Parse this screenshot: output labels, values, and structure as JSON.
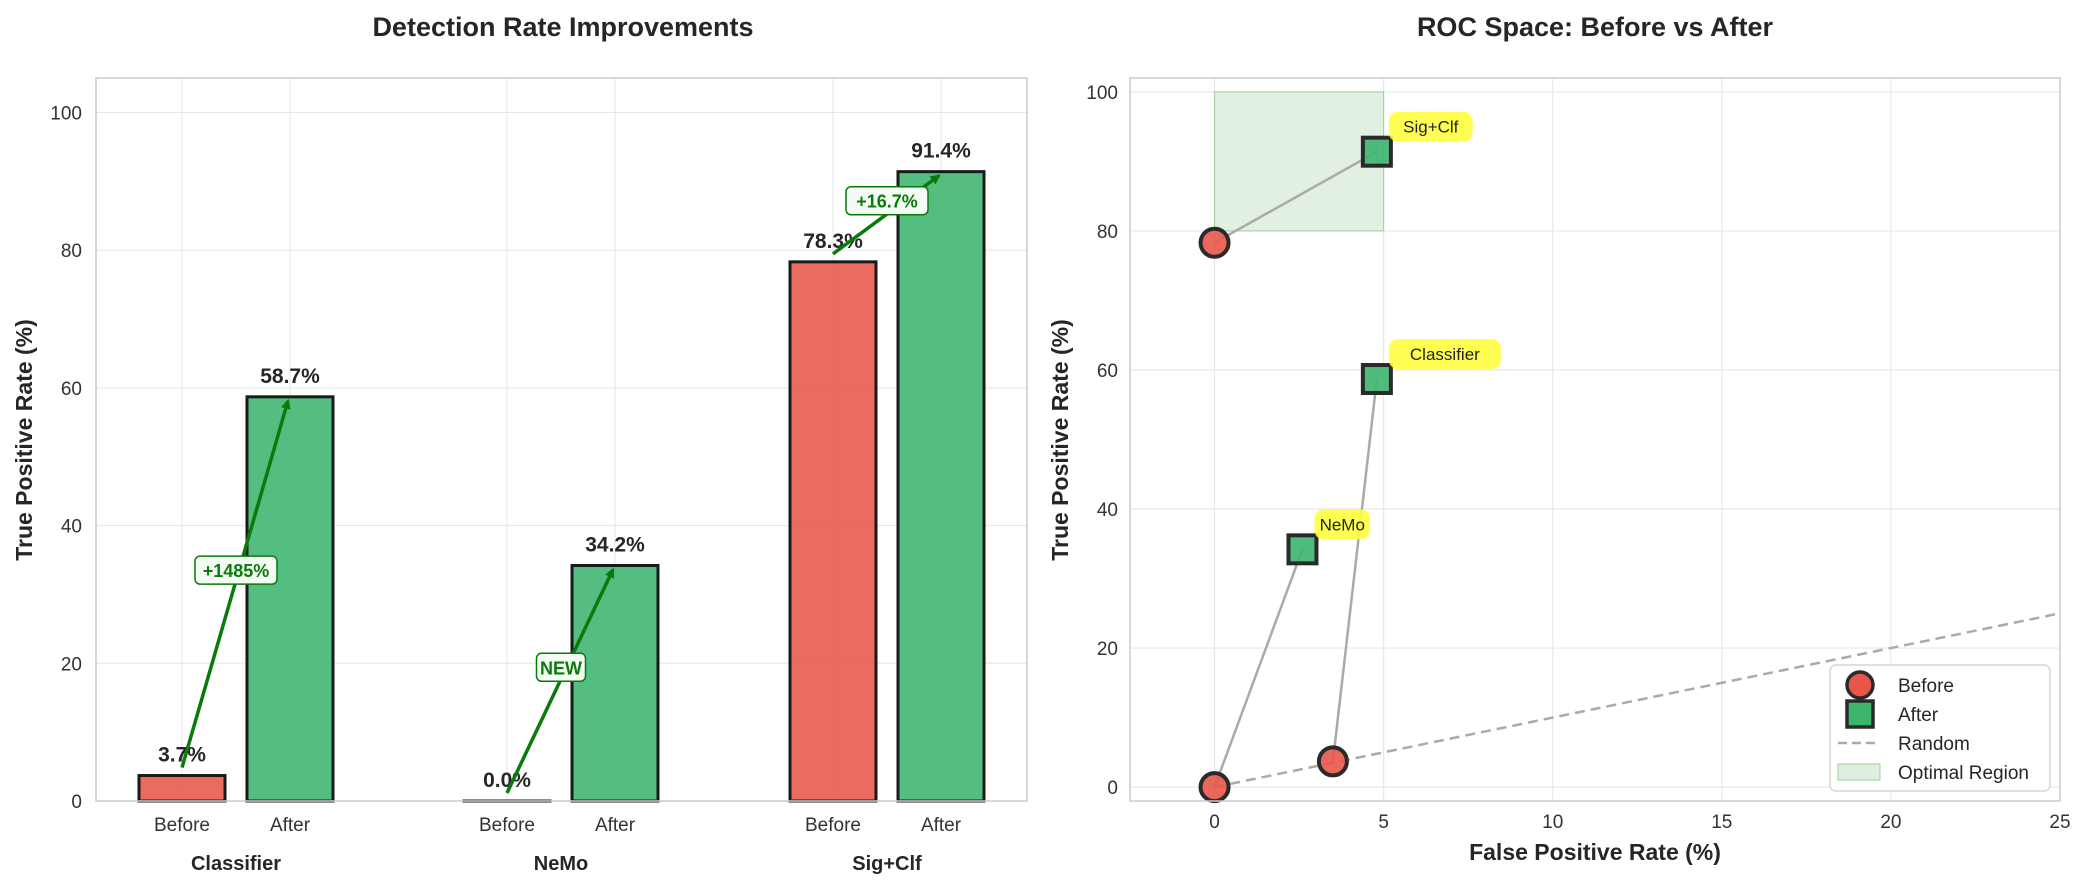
{
  "colors": {
    "before": "#e8564a",
    "after": "#3cb46e",
    "arrow": "#0a7a0a",
    "highlight": "#ffff40",
    "optimal": "#c9e4c9",
    "connector": "#aaaaaa"
  },
  "chart_data": [
    {
      "type": "bar",
      "title": "Detection Rate Improvements",
      "xlabel": "",
      "ylabel": "True Positive Rate (%)",
      "ylim": [
        0,
        105
      ],
      "yticks": [
        0,
        20,
        40,
        60,
        80,
        100
      ],
      "groups": [
        "Classifier",
        "NeMo",
        "Sig+Clf"
      ],
      "bar_labels": [
        "Before",
        "After"
      ],
      "series": [
        {
          "name": "Before",
          "values": [
            3.7,
            0.0,
            78.3
          ],
          "labels": [
            "3.7%",
            "0.0%",
            "78.3%"
          ]
        },
        {
          "name": "After",
          "values": [
            58.7,
            34.2,
            91.4
          ],
          "labels": [
            "58.7%",
            "34.2%",
            "91.4%"
          ]
        }
      ],
      "annotations": [
        "+1485%",
        "NEW",
        "+16.7%"
      ],
      "grid": true
    },
    {
      "type": "scatter",
      "title": "ROC Space: Before vs After",
      "xlabel": "False Positive Rate (%)",
      "ylabel": "True Positive Rate (%)",
      "xlim": [
        -2.5,
        25
      ],
      "ylim": [
        -2,
        102
      ],
      "xticks": [
        0,
        5,
        10,
        15,
        20,
        25
      ],
      "yticks": [
        0,
        20,
        40,
        60,
        80,
        100
      ],
      "points": [
        {
          "name": "Classifier",
          "before": [
            3.5,
            3.7
          ],
          "after": [
            4.8,
            58.7
          ]
        },
        {
          "name": "NeMo",
          "before": [
            0.0,
            0.0
          ],
          "after": [
            2.6,
            34.2
          ]
        },
        {
          "name": "Sig+Clf",
          "before": [
            0.0,
            78.3
          ],
          "after": [
            4.8,
            91.4
          ]
        }
      ],
      "optimal_region": {
        "x": [
          0,
          5
        ],
        "y": [
          80,
          100
        ]
      },
      "random_line": {
        "x": [
          0,
          25
        ],
        "y": [
          0,
          25
        ]
      },
      "legend": [
        "Before",
        "After",
        "Random",
        "Optimal Region"
      ],
      "legend_position": "lower-right",
      "grid": true
    }
  ]
}
